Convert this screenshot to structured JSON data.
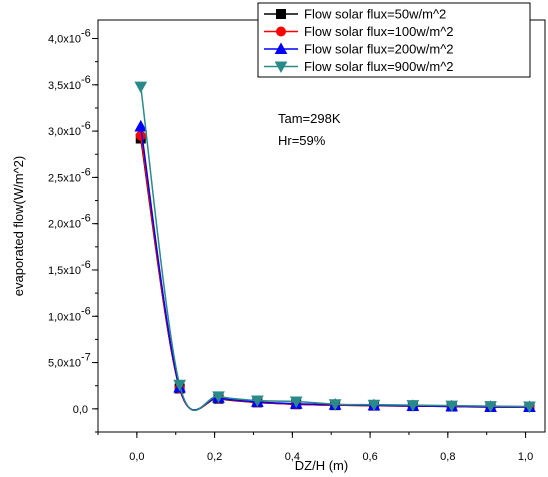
{
  "chart_data": {
    "type": "line",
    "title": "",
    "xlabel": "DZ/H (m)",
    "ylabel": "evaporated flow(W/m^2)",
    "xlim": [
      -0.1,
      1.05
    ],
    "ylim": [
      -2.5e-07,
      4.2e-06
    ],
    "x_ticks": [
      0.0,
      0.2,
      0.4,
      0.6,
      0.8,
      1.0
    ],
    "x_tick_labels": [
      "0,0",
      "0,2",
      "0,4",
      "0,6",
      "0,8",
      "1,0"
    ],
    "y_ticks": [
      0,
      5e-07,
      1e-06,
      1.5e-06,
      2e-06,
      2.5e-06,
      3e-06,
      3.5e-06,
      4e-06
    ],
    "y_tick_mantissa": [
      "0,0",
      "5,0x10",
      "1,0x10",
      "1,5x10",
      "2,0x10",
      "2,5x10",
      "3,0x10",
      "3,5x10",
      "4,0x10"
    ],
    "y_tick_exponent": [
      "",
      "-7",
      "-6",
      "-6",
      "-6",
      "-6",
      "-6",
      "-6",
      "-6"
    ],
    "grid": false,
    "legend_position": "top-right",
    "x": [
      0.01,
      0.11,
      0.21,
      0.31,
      0.41,
      0.51,
      0.61,
      0.71,
      0.81,
      0.91,
      1.01
    ],
    "series": [
      {
        "name": "Flow solar flux=50w/m^2",
        "color": "#000000",
        "marker": "square",
        "values": [
          2.92e-06,
          2.2e-07,
          1.1e-07,
          7e-08,
          5e-08,
          4e-08,
          3.5e-08,
          3e-08,
          2.5e-08,
          2e-08,
          2e-08
        ]
      },
      {
        "name": "Flow solar flux=100w/m^2",
        "color": "#ff0000",
        "marker": "circle",
        "values": [
          2.95e-06,
          2.2e-07,
          1.15e-07,
          7e-08,
          5e-08,
          4e-08,
          3.5e-08,
          3e-08,
          2.5e-08,
          2e-08,
          2e-08
        ]
      },
      {
        "name": "Flow solar flux=200w/m^2",
        "color": "#0000ff",
        "marker": "triangle-up",
        "values": [
          3.05e-06,
          2.3e-07,
          1.2e-07,
          7.5e-08,
          5.5e-08,
          4.5e-08,
          3.8e-08,
          3.2e-08,
          2.7e-08,
          2.2e-08,
          2e-08
        ]
      },
      {
        "name": "Flow solar flux=900w/m^2",
        "color": "#2a8a8a",
        "marker": "triangle-down",
        "values": [
          3.48e-06,
          2.6e-07,
          1.35e-07,
          9e-08,
          8e-08,
          5e-08,
          4.5e-08,
          4e-08,
          3.5e-08,
          3e-08,
          2.5e-08
        ]
      }
    ],
    "annotations": [
      "Tam=298K",
      "Hr=59%"
    ]
  }
}
